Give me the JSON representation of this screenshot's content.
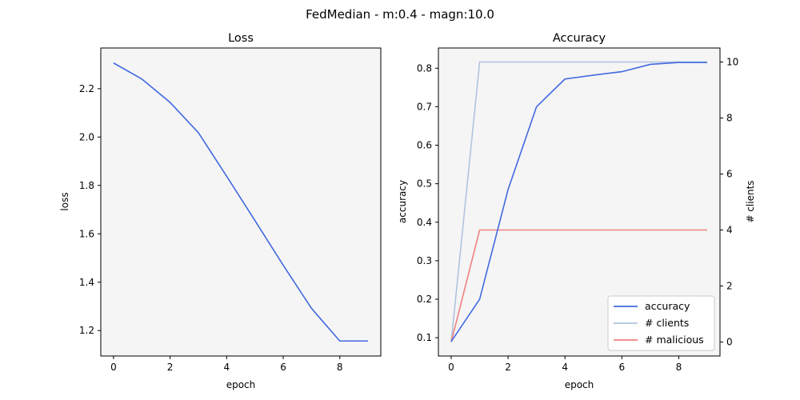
{
  "suptitle": "FedMedian - m:0.4 - magn:10.0",
  "chart_data": [
    {
      "type": "line",
      "title": "Loss",
      "xlabel": "epoch",
      "ylabel": "loss",
      "x": [
        0,
        1,
        2,
        3,
        4,
        5,
        6,
        7,
        8,
        9
      ],
      "xlim": [
        -0.45,
        9.45
      ],
      "ylim": [
        1.095,
        2.368
      ],
      "xticks": [
        0,
        2,
        4,
        6,
        8
      ],
      "yticks": [
        1.2,
        1.4,
        1.6,
        1.8,
        2.0,
        2.2
      ],
      "ytick_labels": [
        "1.2",
        "1.4",
        "1.6",
        "1.8",
        "2.0",
        "2.2"
      ],
      "series": [
        {
          "key": "loss",
          "color": "#4169e1",
          "values": [
            2.306,
            2.24,
            2.143,
            2.018,
            1.838,
            1.655,
            1.47,
            1.292,
            1.157,
            1.157
          ]
        }
      ],
      "grid": false
    },
    {
      "type": "line",
      "title": "Accuracy",
      "xlabel": "epoch",
      "ylabel": "accuracy",
      "y2label": "# clients",
      "x": [
        0,
        1,
        2,
        3,
        4,
        5,
        6,
        7,
        8,
        9
      ],
      "xlim": [
        -0.45,
        9.45
      ],
      "ylim": [
        0.0525,
        0.8525
      ],
      "y2lim": [
        -0.5,
        10.5
      ],
      "xticks": [
        0,
        2,
        4,
        6,
        8
      ],
      "yticks": [
        0.1,
        0.2,
        0.3,
        0.4,
        0.5,
        0.6,
        0.7,
        0.8
      ],
      "y2ticks": [
        0,
        2,
        4,
        6,
        8,
        10
      ],
      "series": [
        {
          "name": "accuracy",
          "axis": "left",
          "color": "#4169e1",
          "values": [
            0.09,
            0.2,
            0.485,
            0.7,
            0.772,
            0.782,
            0.791,
            0.81,
            0.815,
            0.815
          ]
        },
        {
          "name": "# clients",
          "axis": "right",
          "color": "#b0c4de",
          "values": [
            0,
            10,
            10,
            10,
            10,
            10,
            10,
            10,
            10,
            10
          ]
        },
        {
          "name": "# malicious",
          "axis": "right",
          "color": "#f08080",
          "values": [
            0,
            4,
            4,
            4,
            4,
            4,
            4,
            4,
            4,
            4
          ]
        }
      ],
      "legend": "lower-right",
      "grid": false
    }
  ]
}
